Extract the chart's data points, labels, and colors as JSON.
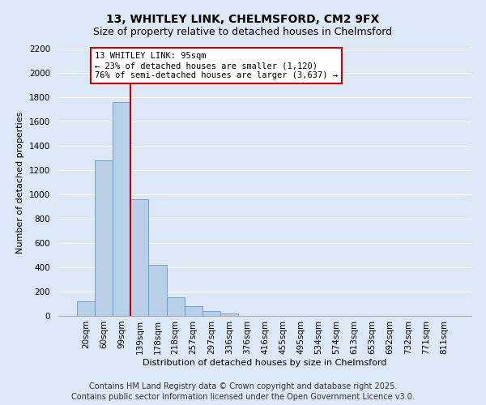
{
  "title1": "13, WHITLEY LINK, CHELMSFORD, CM2 9FX",
  "title2": "Size of property relative to detached houses in Chelmsford",
  "xlabel": "Distribution of detached houses by size in Chelmsford",
  "ylabel": "Number of detached properties",
  "categories": [
    "20sqm",
    "60sqm",
    "99sqm",
    "139sqm",
    "178sqm",
    "218sqm",
    "257sqm",
    "297sqm",
    "336sqm",
    "376sqm",
    "416sqm",
    "455sqm",
    "495sqm",
    "534sqm",
    "574sqm",
    "613sqm",
    "653sqm",
    "692sqm",
    "732sqm",
    "771sqm",
    "811sqm"
  ],
  "values": [
    120,
    1280,
    1760,
    960,
    420,
    155,
    80,
    40,
    20,
    0,
    0,
    0,
    0,
    0,
    0,
    0,
    0,
    0,
    0,
    0,
    0
  ],
  "bar_color": "#b8cfe8",
  "bar_edge_color": "#6699cc",
  "vline_color": "#cc0000",
  "vline_x": 2.5,
  "annotation_text": "13 WHITLEY LINK: 95sqm\n← 23% of detached houses are smaller (1,120)\n76% of semi-detached houses are larger (3,637) →",
  "annotation_box_color": "#cc0000",
  "ylim": [
    0,
    2200
  ],
  "yticks": [
    0,
    200,
    400,
    600,
    800,
    1000,
    1200,
    1400,
    1600,
    1800,
    2000,
    2200
  ],
  "footer1": "Contains HM Land Registry data © Crown copyright and database right 2025.",
  "footer2": "Contains public sector information licensed under the Open Government Licence v3.0.",
  "background_color": "#dce8f5",
  "plot_bg_color": "#dce8f5",
  "grid_color": "#ffffff",
  "title_fontsize": 10,
  "subtitle_fontsize": 9,
  "axis_label_fontsize": 8,
  "tick_fontsize": 7.5,
  "annot_fontsize": 7.5,
  "footer_fontsize": 7
}
